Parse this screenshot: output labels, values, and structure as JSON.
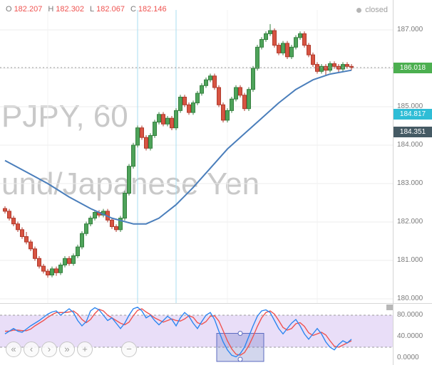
{
  "header": {
    "legend": {
      "o_label": "O",
      "o": "182.207",
      "h_label": "H",
      "h": "182.302",
      "l_label": "L",
      "l": "182.067",
      "c_label": "C",
      "c": "182.146"
    },
    "status": {
      "dot": "",
      "label": "closed"
    }
  },
  "watermark": {
    "line1": "PJPY, 60",
    "line2": "und/Japanese Yen"
  },
  "nav": {
    "buttons": [
      {
        "glyph": "«"
      },
      {
        "glyph": "‹"
      },
      {
        "glyph": "›"
      },
      {
        "glyph": "»"
      },
      {
        "glyph": "+"
      },
      {
        "glyph": "−"
      }
    ]
  },
  "chart_data": [
    {
      "type": "candlestick",
      "interval_minutes": 60,
      "ylim": [
        179.8,
        187.6
      ],
      "grid": true,
      "last_price": 186.018,
      "price_ticks": [
        {
          "value": 187,
          "label": "187.000"
        },
        {
          "value": 186,
          "label": "186.000"
        },
        {
          "value": 185,
          "label": "185.000"
        },
        {
          "value": 184,
          "label": "184.000"
        },
        {
          "value": 183,
          "label": "183.000"
        },
        {
          "value": 182,
          "label": "182.000"
        },
        {
          "value": 181,
          "label": "181.000"
        },
        {
          "value": 180,
          "label": "180.000"
        }
      ],
      "badges": [
        {
          "name": "last-price-badge",
          "value": 186.018,
          "label": "186.018",
          "color": "#4caf50"
        },
        {
          "name": "indicator-value-badge",
          "value": 184.817,
          "label": "184.817",
          "color": "#2fbdd6"
        },
        {
          "name": "secondary-value-badge",
          "value": 184.351,
          "label": "184.351",
          "color": "#455a64"
        }
      ],
      "colors": {
        "up": "#4ea35a",
        "up_border": "#35803f",
        "down": "#d75442",
        "down_border": "#b03a2c"
      },
      "session_line_indices": [
        31,
        40
      ],
      "session_line_color": "#a8def2",
      "ma": {
        "color": "#4a7ebb",
        "points": [
          [
            0,
            183.6
          ],
          [
            5,
            183.3
          ],
          [
            10,
            183.0
          ],
          [
            15,
            182.65
          ],
          [
            20,
            182.35
          ],
          [
            25,
            182.1
          ],
          [
            30,
            181.95
          ],
          [
            33,
            181.95
          ],
          [
            36,
            182.1
          ],
          [
            40,
            182.45
          ],
          [
            44,
            182.9
          ],
          [
            48,
            183.4
          ],
          [
            52,
            183.9
          ],
          [
            56,
            184.3
          ],
          [
            60,
            184.7
          ],
          [
            64,
            185.1
          ],
          [
            68,
            185.45
          ],
          [
            72,
            185.7
          ],
          [
            76,
            185.85
          ],
          [
            81,
            185.95
          ]
        ]
      },
      "candles": [
        [
          182.35,
          182.41,
          182.22,
          182.28
        ],
        [
          182.28,
          182.34,
          182.04,
          182.1
        ],
        [
          182.1,
          182.16,
          181.89,
          181.95
        ],
        [
          181.95,
          182.01,
          181.74,
          181.8
        ],
        [
          181.8,
          181.86,
          181.56,
          181.62
        ],
        [
          181.62,
          181.74,
          181.42,
          181.48
        ],
        [
          181.48,
          181.54,
          181.24,
          181.3
        ],
        [
          181.3,
          181.36,
          180.99,
          181.05
        ],
        [
          181.05,
          181.11,
          180.79,
          180.85
        ],
        [
          180.85,
          180.91,
          180.66,
          180.72
        ],
        [
          180.72,
          180.78,
          180.55,
          180.62
        ],
        [
          180.62,
          180.84,
          180.56,
          180.78
        ],
        [
          180.78,
          180.84,
          180.6,
          180.68
        ],
        [
          180.68,
          180.94,
          180.62,
          180.88
        ],
        [
          180.88,
          181.11,
          180.82,
          181.05
        ],
        [
          181.05,
          181.11,
          180.86,
          180.92
        ],
        [
          180.92,
          181.18,
          180.86,
          181.12
        ],
        [
          181.12,
          181.41,
          181.06,
          181.35
        ],
        [
          181.35,
          181.76,
          181.29,
          181.7
        ],
        [
          181.7,
          182.01,
          181.64,
          181.95
        ],
        [
          181.95,
          182.16,
          181.89,
          182.1
        ],
        [
          182.1,
          182.31,
          182.04,
          182.25
        ],
        [
          182.25,
          182.31,
          182.12,
          182.18
        ],
        [
          182.18,
          182.34,
          182.12,
          182.28
        ],
        [
          182.28,
          182.34,
          181.99,
          182.05
        ],
        [
          182.05,
          182.11,
          181.82,
          181.88
        ],
        [
          181.88,
          181.94,
          181.74,
          181.8
        ],
        [
          181.8,
          182.16,
          181.74,
          182.1
        ],
        [
          182.1,
          182.81,
          182.04,
          182.75
        ],
        [
          182.75,
          183.51,
          182.69,
          183.45
        ],
        [
          183.45,
          184.06,
          183.39,
          184.0
        ],
        [
          184.0,
          184.51,
          183.94,
          184.45
        ],
        [
          184.45,
          184.51,
          184.14,
          184.2
        ],
        [
          184.2,
          184.26,
          183.86,
          183.92
        ],
        [
          183.92,
          184.31,
          183.86,
          184.25
        ],
        [
          184.25,
          184.66,
          184.19,
          184.6
        ],
        [
          184.6,
          184.86,
          184.54,
          184.8
        ],
        [
          184.8,
          184.86,
          184.49,
          184.55
        ],
        [
          184.55,
          184.76,
          184.49,
          184.7
        ],
        [
          184.7,
          184.76,
          184.39,
          184.45
        ],
        [
          184.45,
          184.96,
          184.39,
          184.9
        ],
        [
          184.9,
          185.31,
          184.84,
          185.25
        ],
        [
          185.25,
          185.31,
          184.99,
          185.05
        ],
        [
          185.05,
          185.11,
          184.79,
          184.85
        ],
        [
          184.85,
          185.16,
          184.79,
          185.1
        ],
        [
          185.1,
          185.41,
          185.04,
          185.35
        ],
        [
          185.35,
          185.61,
          185.29,
          185.55
        ],
        [
          185.55,
          185.76,
          185.49,
          185.7
        ],
        [
          185.7,
          185.86,
          185.64,
          185.8
        ],
        [
          185.8,
          185.86,
          185.44,
          185.5
        ],
        [
          185.5,
          185.56,
          184.99,
          185.05
        ],
        [
          185.05,
          185.11,
          184.59,
          184.65
        ],
        [
          184.65,
          184.96,
          184.59,
          184.9
        ],
        [
          184.9,
          185.26,
          184.84,
          185.2
        ],
        [
          185.2,
          185.56,
          185.14,
          185.5
        ],
        [
          185.5,
          185.56,
          185.24,
          185.3
        ],
        [
          185.3,
          185.36,
          184.89,
          184.95
        ],
        [
          184.95,
          185.51,
          184.89,
          185.45
        ],
        [
          185.45,
          186.06,
          185.39,
          186.0
        ],
        [
          186.0,
          186.61,
          185.94,
          186.55
        ],
        [
          186.55,
          186.81,
          186.49,
          186.75
        ],
        [
          186.75,
          186.96,
          186.69,
          186.9
        ],
        [
          186.9,
          187.15,
          186.84,
          186.98
        ],
        [
          186.98,
          187.04,
          186.54,
          186.6
        ],
        [
          186.6,
          186.66,
          186.34,
          186.4
        ],
        [
          186.4,
          186.71,
          186.34,
          186.65
        ],
        [
          186.65,
          186.71,
          186.24,
          186.3
        ],
        [
          186.3,
          186.61,
          186.24,
          186.55
        ],
        [
          186.55,
          186.86,
          186.49,
          186.8
        ],
        [
          186.8,
          186.96,
          186.74,
          186.9
        ],
        [
          186.9,
          186.96,
          186.54,
          186.6
        ],
        [
          186.6,
          186.66,
          186.29,
          186.35
        ],
        [
          186.35,
          186.41,
          186.04,
          186.1
        ],
        [
          186.1,
          186.16,
          185.86,
          185.92
        ],
        [
          185.92,
          186.11,
          185.86,
          186.05
        ],
        [
          186.05,
          186.11,
          185.8,
          185.95
        ],
        [
          185.95,
          186.18,
          185.89,
          186.12
        ],
        [
          186.12,
          186.18,
          185.99,
          186.05
        ],
        [
          186.05,
          186.11,
          185.9,
          185.98
        ],
        [
          185.98,
          186.16,
          185.92,
          186.1
        ],
        [
          186.1,
          186.16,
          185.99,
          186.05
        ],
        [
          186.05,
          186.11,
          185.95,
          186.018
        ]
      ]
    },
    {
      "type": "line",
      "name": "Stochastic",
      "ylim": [
        0,
        100
      ],
      "band": [
        80,
        20
      ],
      "band_fill": "rgba(156,106,222,0.22)",
      "ticks": [
        {
          "value": 80,
          "label": "80.0000"
        },
        {
          "value": 40,
          "label": "40.0000"
        },
        {
          "value": 0,
          "label": "0.0000"
        }
      ],
      "selection": {
        "from_index": 50,
        "to_index": 60,
        "top_value": 46
      },
      "series": [
        {
          "name": "%K",
          "color": "#2d86f0",
          "values": [
            45,
            50,
            55,
            50,
            48,
            54,
            60,
            65,
            70,
            76,
            82,
            86,
            88,
            80,
            86,
            92,
            85,
            70,
            60,
            68,
            88,
            94,
            90,
            80,
            70,
            75,
            65,
            55,
            65,
            80,
            92,
            95,
            88,
            75,
            80,
            70,
            62,
            70,
            78,
            72,
            60,
            75,
            85,
            78,
            65,
            55,
            68,
            80,
            85,
            72,
            50,
            30,
            15,
            5,
            2,
            8,
            20,
            40,
            60,
            78,
            88,
            90,
            85,
            70,
            55,
            45,
            55,
            65,
            72,
            60,
            45,
            35,
            45,
            55,
            45,
            30,
            20,
            15,
            25,
            32,
            28,
            35
          ]
        },
        {
          "name": "%D",
          "color": "#ef5350",
          "values": [
            50,
            50,
            52,
            52,
            51,
            51,
            54,
            60,
            65,
            70,
            76,
            81,
            85,
            85,
            85,
            86,
            88,
            82,
            72,
            66,
            72,
            83,
            91,
            88,
            80,
            75,
            70,
            65,
            62,
            67,
            79,
            89,
            92,
            86,
            81,
            75,
            71,
            67,
            70,
            73,
            70,
            69,
            73,
            79,
            76,
            66,
            63,
            68,
            78,
            79,
            69,
            51,
            32,
            17,
            7,
            5,
            10,
            23,
            40,
            59,
            75,
            85,
            88,
            82,
            70,
            57,
            52,
            55,
            64,
            66,
            59,
            47,
            42,
            45,
            48,
            43,
            32,
            22,
            20,
            24,
            28,
            32
          ]
        }
      ]
    }
  ]
}
